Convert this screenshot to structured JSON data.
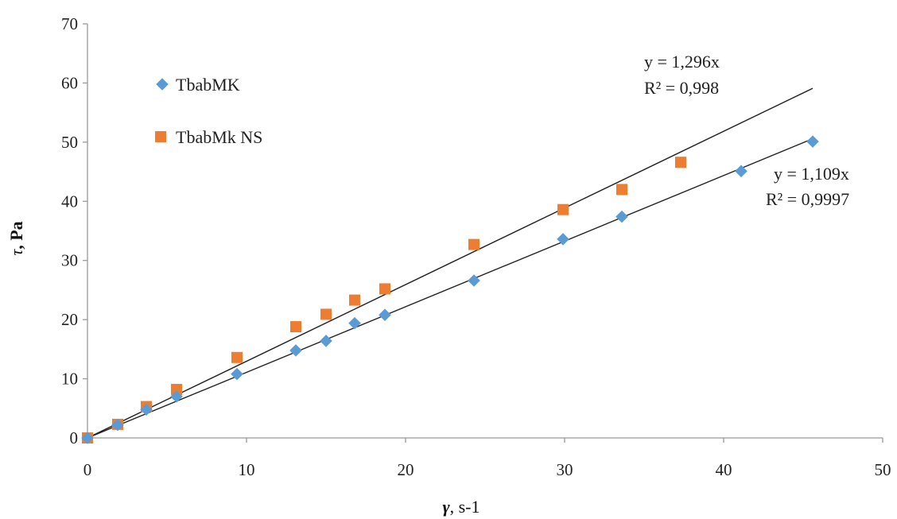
{
  "chart_data": {
    "type": "scatter",
    "x_axis": {
      "label_symbol": "γ",
      "label_unit": ", s-1",
      "range": [
        0,
        50
      ],
      "ticks": [
        "0",
        "10",
        "20",
        "30",
        "40",
        "50"
      ]
    },
    "y_axis": {
      "label_symbol": "τ",
      "label_unit": ", Pa",
      "range": [
        0,
        70
      ],
      "ticks": [
        "0",
        "10",
        "20",
        "30",
        "40",
        "50",
        "60",
        "70"
      ]
    },
    "grid": false,
    "legend": {
      "position": "top-left"
    },
    "series": [
      {
        "name": "TbabMK",
        "marker": "diamond",
        "color": "#5B9BD5",
        "points": [
          [
            0,
            0
          ],
          [
            1.9,
            2.2
          ],
          [
            3.7,
            4.8
          ],
          [
            5.6,
            7.0
          ],
          [
            9.4,
            10.8
          ],
          [
            13.1,
            14.8
          ],
          [
            15.0,
            16.4
          ],
          [
            16.8,
            19.4
          ],
          [
            18.7,
            20.8
          ],
          [
            24.3,
            26.6
          ],
          [
            29.9,
            33.6
          ],
          [
            33.6,
            37.4
          ],
          [
            41.1,
            45.1
          ],
          [
            45.6,
            50.1
          ]
        ],
        "trendline": {
          "slope": 1.109,
          "x_end": 45.6,
          "equation": "y = 1,109x",
          "r2": "R² = 0,9997"
        }
      },
      {
        "name": "TbabMk NS",
        "marker": "square",
        "color": "#ED7D31",
        "points": [
          [
            0,
            0
          ],
          [
            1.9,
            2.3
          ],
          [
            3.7,
            5.3
          ],
          [
            5.6,
            8.2
          ],
          [
            9.4,
            13.6
          ],
          [
            13.1,
            18.8
          ],
          [
            15.0,
            20.9
          ],
          [
            16.8,
            23.3
          ],
          [
            18.7,
            25.2
          ],
          [
            24.3,
            32.7
          ],
          [
            29.9,
            38.6
          ],
          [
            33.6,
            42.0
          ],
          [
            37.3,
            46.6
          ]
        ],
        "trendline": {
          "slope": 1.296,
          "x_end": 45.6,
          "equation": "y = 1,296x",
          "r2": "R² = 0,998"
        }
      }
    ]
  }
}
